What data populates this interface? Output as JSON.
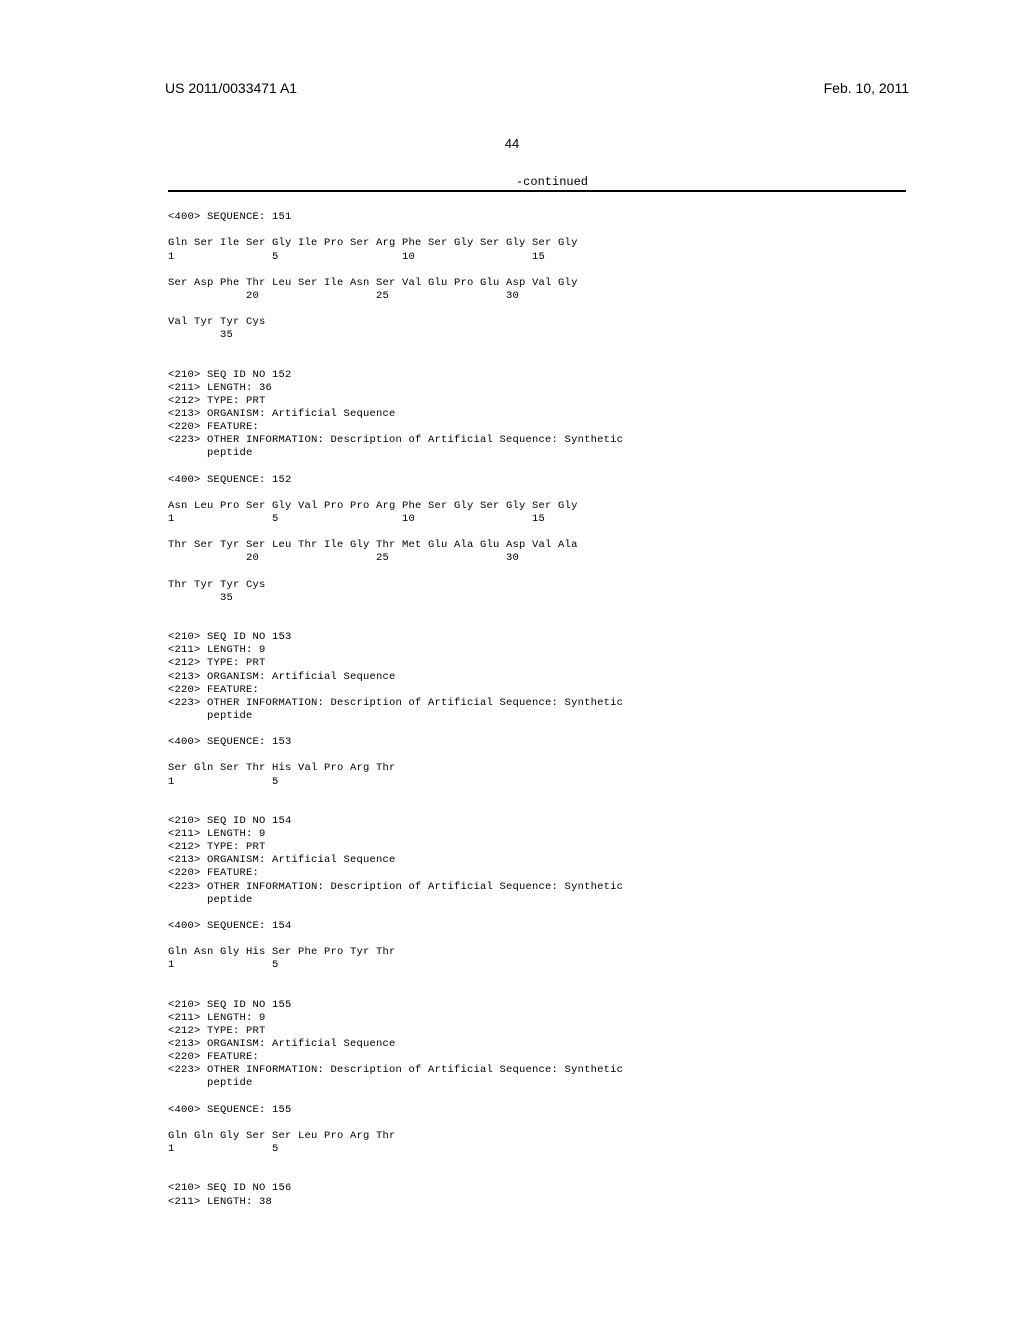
{
  "header": {
    "patent_number": "US 2011/0033471 A1",
    "date": "Feb. 10, 2011"
  },
  "page_number": "44",
  "continued_label": "-continued",
  "sequences": [
    {
      "header_lines": [
        "<400> SEQUENCE: 151"
      ],
      "seq_lines": [
        "Gln Ser Ile Ser Gly Ile Pro Ser Arg Phe Ser Gly Ser Gly Ser Gly",
        "1               5                   10                  15",
        "",
        "Ser Asp Phe Thr Leu Ser Ile Asn Ser Val Glu Pro Glu Asp Val Gly",
        "            20                  25                  30",
        "",
        "Val Tyr Tyr Cys",
        "        35"
      ]
    },
    {
      "header_lines": [
        "<210> SEQ ID NO 152",
        "<211> LENGTH: 36",
        "<212> TYPE: PRT",
        "<213> ORGANISM: Artificial Sequence",
        "<220> FEATURE:",
        "<223> OTHER INFORMATION: Description of Artificial Sequence: Synthetic",
        "      peptide",
        "",
        "<400> SEQUENCE: 152"
      ],
      "seq_lines": [
        "Asn Leu Pro Ser Gly Val Pro Pro Arg Phe Ser Gly Ser Gly Ser Gly",
        "1               5                   10                  15",
        "",
        "Thr Ser Tyr Ser Leu Thr Ile Gly Thr Met Glu Ala Glu Asp Val Ala",
        "            20                  25                  30",
        "",
        "Thr Tyr Tyr Cys",
        "        35"
      ]
    },
    {
      "header_lines": [
        "<210> SEQ ID NO 153",
        "<211> LENGTH: 9",
        "<212> TYPE: PRT",
        "<213> ORGANISM: Artificial Sequence",
        "<220> FEATURE:",
        "<223> OTHER INFORMATION: Description of Artificial Sequence: Synthetic",
        "      peptide",
        "",
        "<400> SEQUENCE: 153"
      ],
      "seq_lines": [
        "Ser Gln Ser Thr His Val Pro Arg Thr",
        "1               5"
      ]
    },
    {
      "header_lines": [
        "<210> SEQ ID NO 154",
        "<211> LENGTH: 9",
        "<212> TYPE: PRT",
        "<213> ORGANISM: Artificial Sequence",
        "<220> FEATURE:",
        "<223> OTHER INFORMATION: Description of Artificial Sequence: Synthetic",
        "      peptide",
        "",
        "<400> SEQUENCE: 154"
      ],
      "seq_lines": [
        "Gln Asn Gly His Ser Phe Pro Tyr Thr",
        "1               5"
      ]
    },
    {
      "header_lines": [
        "<210> SEQ ID NO 155",
        "<211> LENGTH: 9",
        "<212> TYPE: PRT",
        "<213> ORGANISM: Artificial Sequence",
        "<220> FEATURE:",
        "<223> OTHER INFORMATION: Description of Artificial Sequence: Synthetic",
        "      peptide",
        "",
        "<400> SEQUENCE: 155"
      ],
      "seq_lines": [
        "Gln Gln Gly Ser Ser Leu Pro Arg Thr",
        "1               5"
      ]
    },
    {
      "header_lines": [
        "<210> SEQ ID NO 156",
        "<211> LENGTH: 38"
      ],
      "seq_lines": []
    }
  ]
}
